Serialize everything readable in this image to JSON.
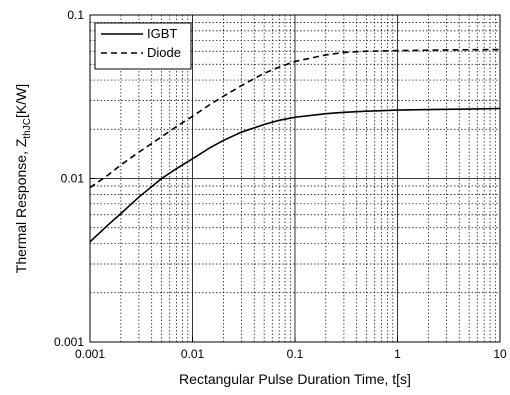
{
  "chart_data": {
    "type": "line",
    "xscale": "log",
    "yscale": "log",
    "xlim": [
      0.001,
      10
    ],
    "ylim": [
      0.001,
      0.1
    ],
    "xlabel": "Rectangular Pulse Duration Time, t[s]",
    "ylabel_main": "Thermal Response, Z",
    "ylabel_sub": "thJC",
    "ylabel_unit": "[K/W]",
    "x_ticks": [
      "0.001",
      "0.01",
      "0.1",
      "1",
      "10"
    ],
    "y_ticks": [
      "0.001",
      "0.01",
      "0.1"
    ],
    "grid": true,
    "legend_position": "top-left",
    "series": [
      {
        "name": "IGBT",
        "style": "solid",
        "color": "#000000",
        "x": [
          0.001,
          0.0015,
          0.002,
          0.003,
          0.005,
          0.007,
          0.01,
          0.015,
          0.02,
          0.03,
          0.05,
          0.07,
          0.1,
          0.2,
          0.3,
          0.5,
          1,
          2,
          3,
          5,
          10
        ],
        "y": [
          0.0041,
          0.0052,
          0.0061,
          0.0077,
          0.01,
          0.0115,
          0.0132,
          0.0155,
          0.0171,
          0.0192,
          0.0214,
          0.0227,
          0.0237,
          0.0249,
          0.0254,
          0.0258,
          0.0262,
          0.0264,
          0.0265,
          0.0266,
          0.0268
        ]
      },
      {
        "name": "Diode",
        "style": "dashed",
        "color": "#000000",
        "x": [
          0.001,
          0.0015,
          0.002,
          0.003,
          0.005,
          0.007,
          0.01,
          0.015,
          0.02,
          0.03,
          0.05,
          0.07,
          0.1,
          0.2,
          0.3,
          0.5,
          1,
          2,
          3,
          5,
          10
        ],
        "y": [
          0.0088,
          0.0105,
          0.0121,
          0.0145,
          0.018,
          0.0208,
          0.024,
          0.0285,
          0.0318,
          0.037,
          0.044,
          0.048,
          0.052,
          0.057,
          0.059,
          0.06,
          0.0606,
          0.0609,
          0.0611,
          0.0613,
          0.0615
        ]
      }
    ]
  }
}
